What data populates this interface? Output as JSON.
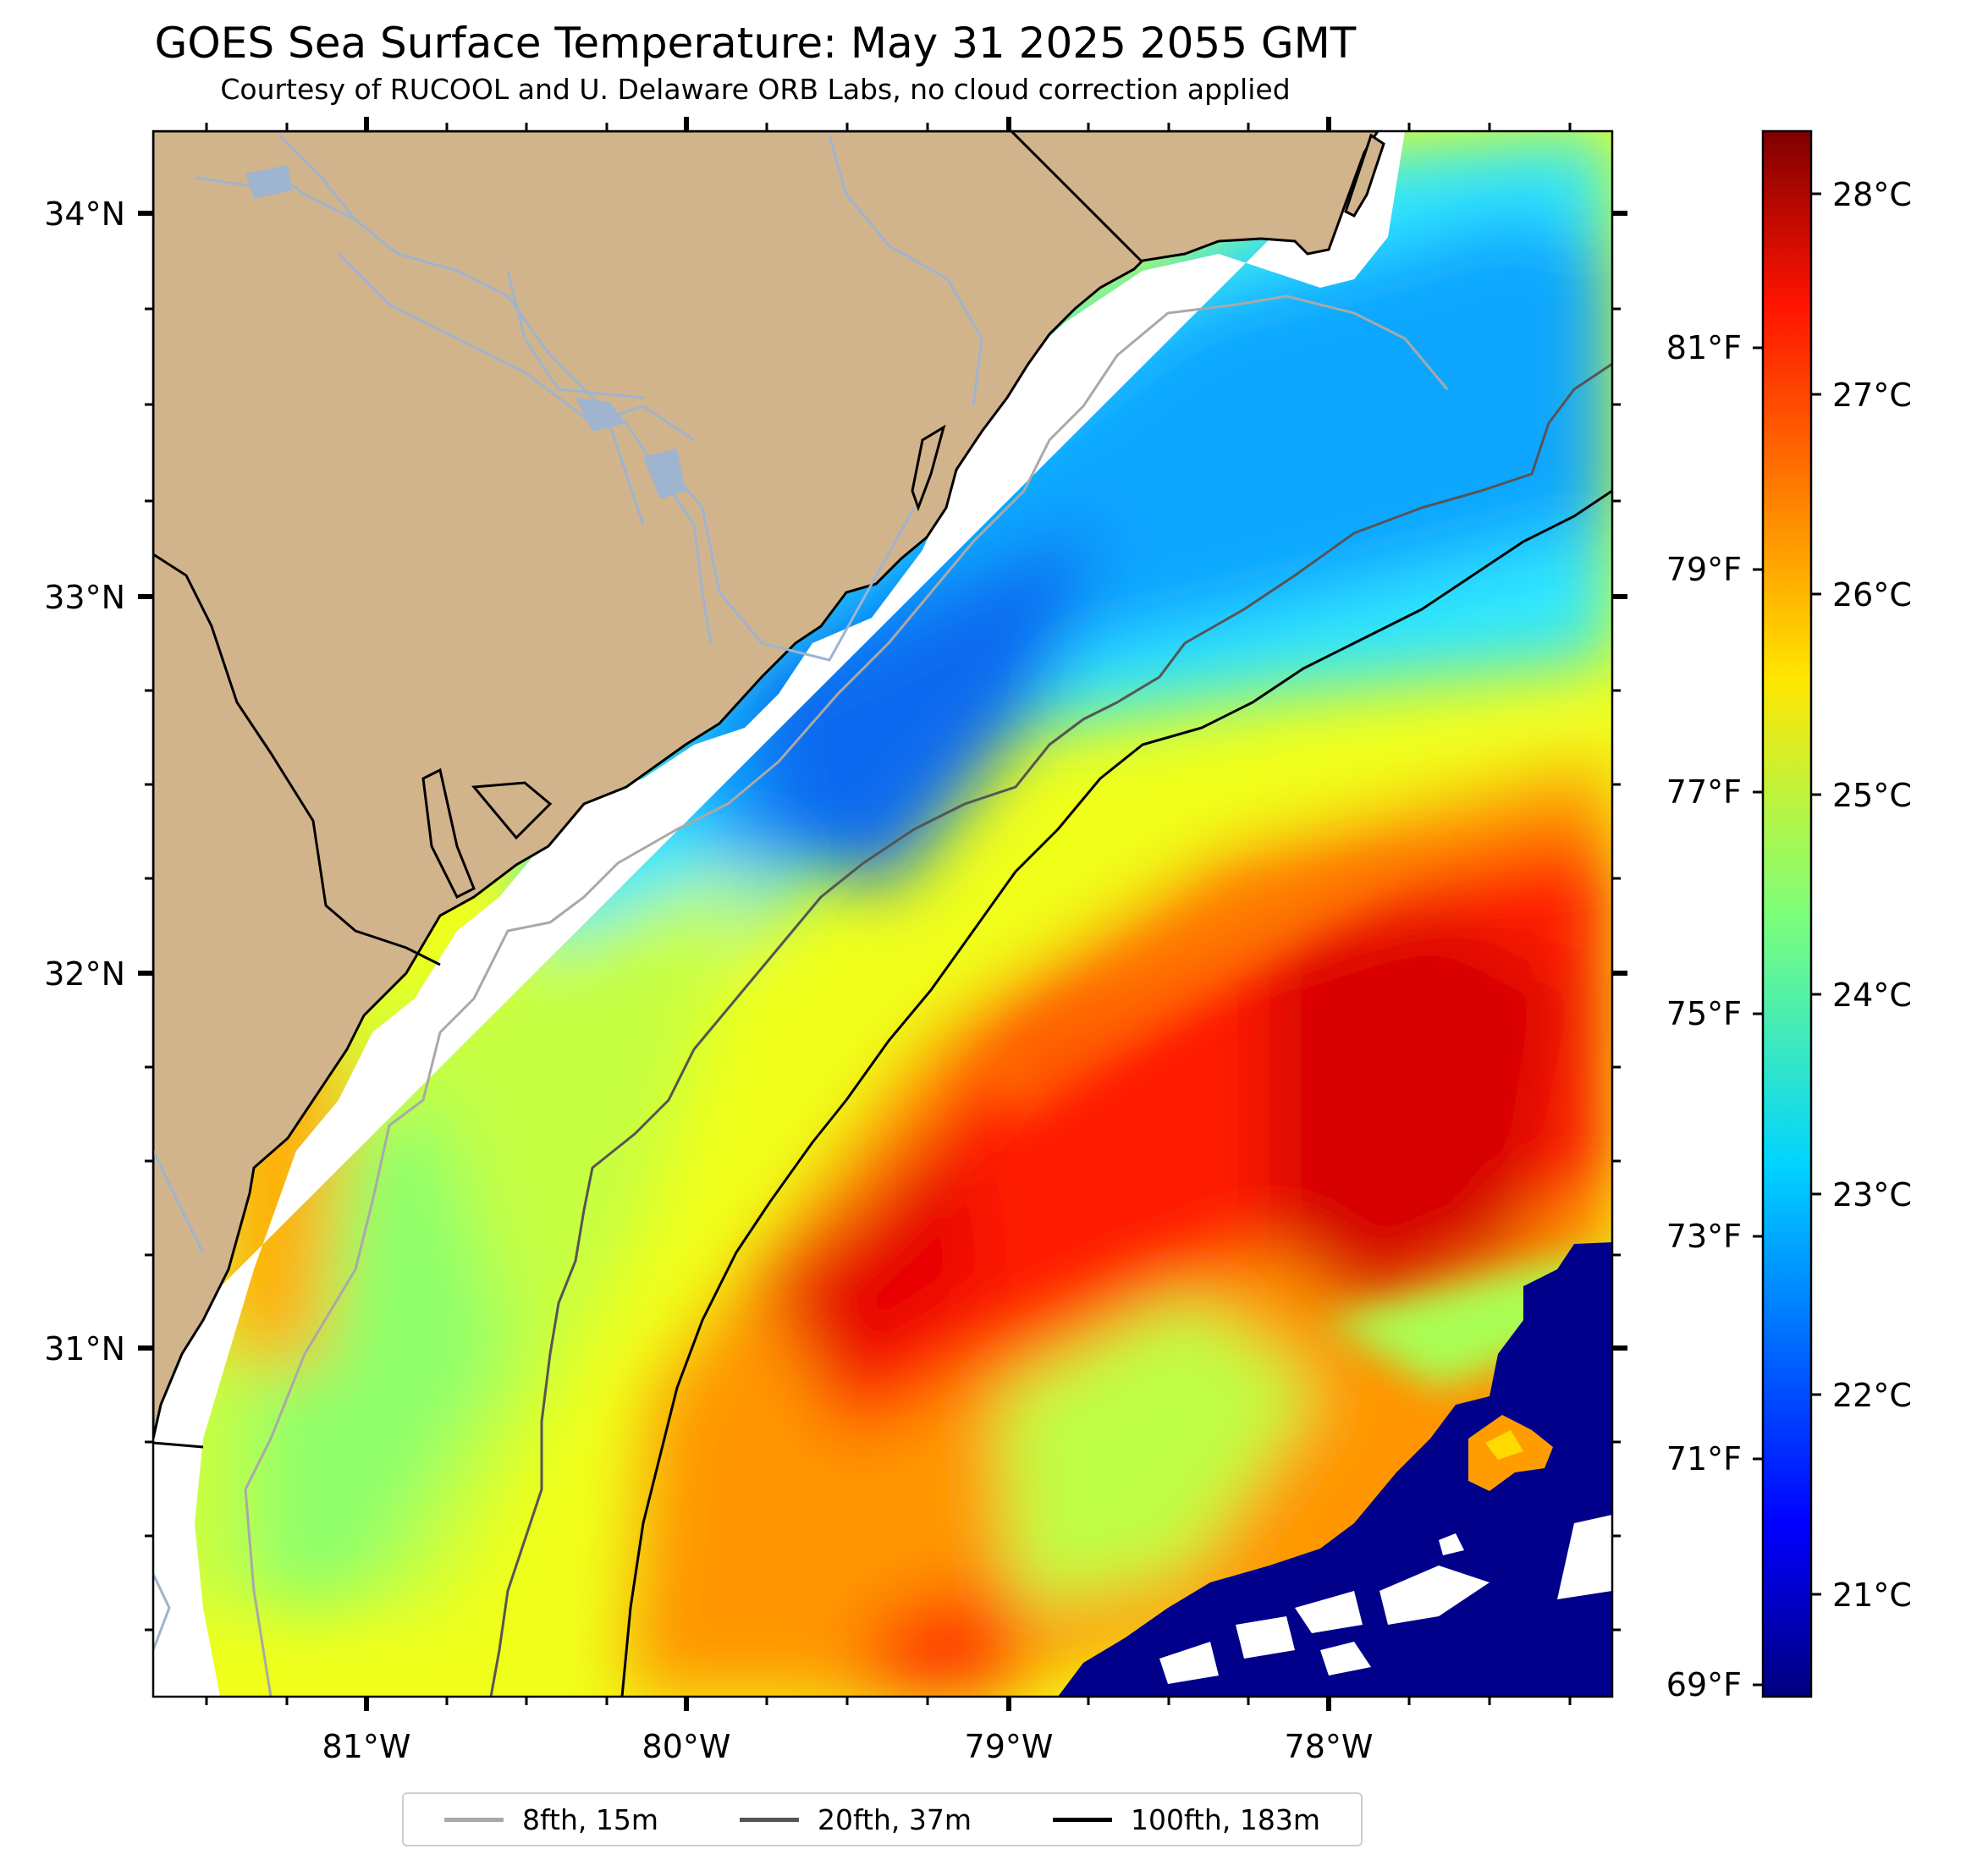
{
  "title": "GOES Sea Surface Temperature: May 31 2025 2055 GMT",
  "subtitle": "Courtesy of RUCOOL and U. Delaware ORB Labs, no cloud correction applied",
  "axes": {
    "longitude_ticks": [
      "81°W",
      "80°W",
      "79°W",
      "78°W"
    ],
    "latitude_ticks": [
      "34°N",
      "33°N",
      "32°N",
      "31°N"
    ],
    "fahrenheit_ticks": [
      "81°F",
      "79°F",
      "77°F",
      "75°F",
      "73°F",
      "71°F",
      "69°F"
    ],
    "celsius_ticks": [
      "28°C",
      "27°C",
      "26°C",
      "25°C",
      "24°C",
      "23°C",
      "22°C",
      "21°C"
    ]
  },
  "legend": [
    {
      "label": "8fth, 15m",
      "color": "#a9a9a9"
    },
    {
      "label": "20fth, 37m",
      "color": "#555555"
    },
    {
      "label": "100fth, 183m",
      "color": "#000000"
    }
  ],
  "colors": {
    "land": "#d2b48c",
    "rivers": "#9eb4cf",
    "cloud_mask": "#00008b",
    "no_data": "#ffffff"
  },
  "colorbar": {
    "colormap": "jet",
    "range_c": [
      20.5,
      28.3
    ]
  }
}
